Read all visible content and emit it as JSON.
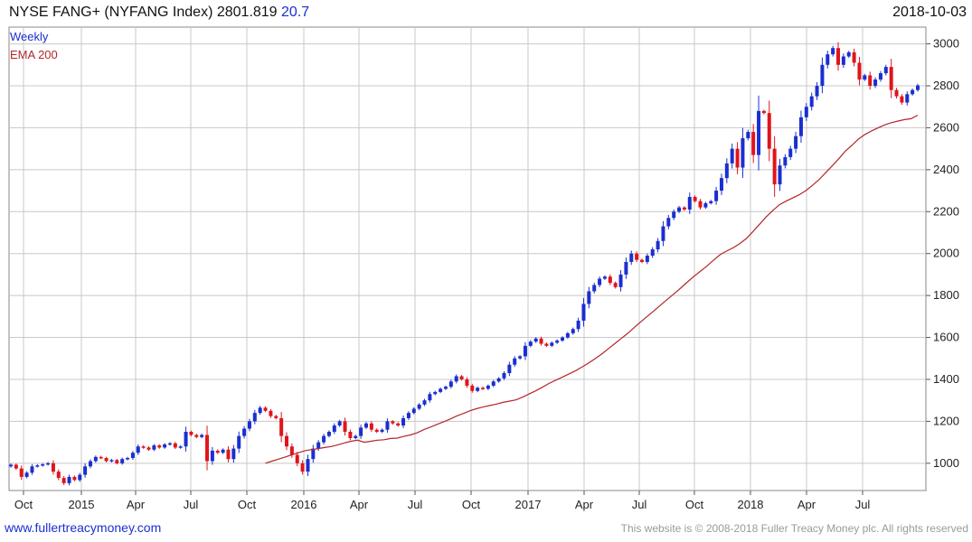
{
  "header": {
    "title": "NYSE FANG+ (NYFANG Index) 2801.819",
    "change": "20.7",
    "date": "2018-10-03"
  },
  "footer": {
    "left": "www.fullertreacymoney.com",
    "right": "This website is © 2008-2018 Fuller Treacy Money plc. All rights reserved"
  },
  "colors": {
    "up": "#1a2fd0",
    "down": "#e0151b",
    "ema": "#b3262a",
    "grid": "#c8c8c8"
  },
  "chart_data": {
    "type": "candlestick",
    "title": "NYSE FANG+ (NYFANG Index) 2801.819 20.7",
    "frequency": "Weekly",
    "legend": [
      "Weekly",
      "EMA 200"
    ],
    "ylim": [
      870,
      3080
    ],
    "yticks": [
      1000,
      1200,
      1400,
      1600,
      1800,
      2000,
      2200,
      2400,
      2600,
      2800,
      3000
    ],
    "xticks": [
      "Oct",
      "2015",
      "Apr",
      "Jul",
      "Oct",
      "2016",
      "Apr",
      "Jul",
      "Oct",
      "2017",
      "Apr",
      "Jul",
      "Oct",
      "2018",
      "Apr",
      "Jul"
    ],
    "close_weekly": [
      993,
      975,
      935,
      955,
      985,
      990,
      995,
      1000,
      960,
      930,
      905,
      935,
      920,
      945,
      985,
      1010,
      1030,
      1025,
      1010,
      1015,
      1000,
      1020,
      1025,
      1050,
      1080,
      1075,
      1065,
      1085,
      1075,
      1090,
      1095,
      1075,
      1080,
      1150,
      1135,
      1125,
      1135,
      1010,
      1060,
      1050,
      1065,
      1020,
      1070,
      1130,
      1165,
      1200,
      1240,
      1265,
      1250,
      1225,
      1215,
      1130,
      1080,
      1040,
      1000,
      960,
      1020,
      1070,
      1100,
      1130,
      1150,
      1180,
      1200,
      1150,
      1120,
      1130,
      1170,
      1190,
      1160,
      1150,
      1160,
      1200,
      1190,
      1180,
      1215,
      1240,
      1260,
      1280,
      1300,
      1330,
      1340,
      1355,
      1365,
      1390,
      1415,
      1400,
      1370,
      1345,
      1360,
      1355,
      1370,
      1390,
      1405,
      1430,
      1470,
      1500,
      1510,
      1560,
      1580,
      1595,
      1570,
      1560,
      1575,
      1585,
      1600,
      1620,
      1640,
      1680,
      1760,
      1820,
      1850,
      1880,
      1890,
      1860,
      1840,
      1900,
      1960,
      2000,
      1970,
      1960,
      1990,
      2020,
      2060,
      2130,
      2170,
      2200,
      2220,
      2210,
      2270,
      2250,
      2220,
      2240,
      2250,
      2300,
      2360,
      2430,
      2500,
      2410,
      2550,
      2580,
      2470,
      2680,
      2670,
      2500,
      2330,
      2420,
      2460,
      2500,
      2560,
      2650,
      2700,
      2750,
      2800,
      2900,
      2950,
      2980,
      2900,
      2940,
      2960,
      2910,
      2830,
      2850,
      2800,
      2830,
      2860,
      2890,
      2780,
      2750,
      2720,
      2760,
      2780,
      2801.8
    ],
    "ema200_weekly": [
      1000,
      1010,
      1020,
      1030,
      1040,
      1050,
      1060,
      1065,
      1070,
      1075,
      1080,
      1088,
      1097,
      1105,
      1110,
      1100,
      1105,
      1110,
      1112,
      1118,
      1120,
      1128,
      1135,
      1145,
      1160,
      1172,
      1185,
      1197,
      1210,
      1225,
      1237,
      1250,
      1260,
      1268,
      1275,
      1282,
      1290,
      1296,
      1302,
      1315,
      1330,
      1345,
      1362,
      1380,
      1395,
      1410,
      1425,
      1440,
      1458,
      1477,
      1498,
      1520,
      1545,
      1570,
      1595,
      1620,
      1648,
      1675,
      1702,
      1728,
      1755,
      1782,
      1808,
      1835,
      1863,
      1890,
      1915,
      1940,
      1968,
      1995,
      2012,
      2028,
      2048,
      2072,
      2105,
      2140,
      2175,
      2205,
      2233,
      2250,
      2265,
      2280,
      2300,
      2325,
      2352,
      2385,
      2418,
      2452,
      2488,
      2516,
      2546,
      2568,
      2585,
      2600,
      2614,
      2624,
      2632,
      2639,
      2643,
      2660
    ],
    "ema_start_week": 48
  }
}
